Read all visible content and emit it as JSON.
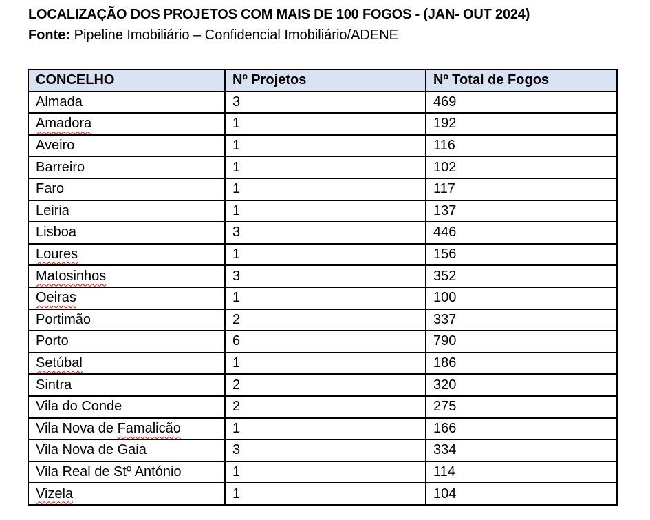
{
  "title": "LOCALIZAÇÃO DOS PROJETOS COM MAIS DE 100 FOGOS - (JAN- OUT 2024)",
  "source": {
    "label": "Fonte:",
    "text": " Pipeline Imobiliário – Confidencial Imobiliário/ADENE"
  },
  "colors": {
    "header_bg": "#d9e2f3",
    "border": "#000000",
    "spellcheck_underline": "#ff0000"
  },
  "table": {
    "headers": [
      "CONCELHO",
      "Nº Projetos",
      "Nº Total de Fogos"
    ],
    "rows": [
      {
        "name_plain": "Almada",
        "name_squiggle": "",
        "projetos": "3",
        "fogos": "469"
      },
      {
        "name_plain": "",
        "name_squiggle": "Amadora",
        "projetos": "1",
        "fogos": "192"
      },
      {
        "name_plain": "Aveiro",
        "name_squiggle": "",
        "projetos": "1",
        "fogos": "116"
      },
      {
        "name_plain": "Barreiro",
        "name_squiggle": "",
        "projetos": "1",
        "fogos": "102"
      },
      {
        "name_plain": "Faro",
        "name_squiggle": "",
        "projetos": "1",
        "fogos": "117"
      },
      {
        "name_plain": "Leiria",
        "name_squiggle": "",
        "projetos": "1",
        "fogos": "137"
      },
      {
        "name_plain": "Lisboa",
        "name_squiggle": "",
        "projetos": "3",
        "fogos": "446"
      },
      {
        "name_plain": "",
        "name_squiggle": "Loures",
        "projetos": "1",
        "fogos": "156"
      },
      {
        "name_plain": "",
        "name_squiggle": "Matosinhos",
        "projetos": "3",
        "fogos": "352"
      },
      {
        "name_plain": "",
        "name_squiggle": "Oeiras",
        "projetos": "1",
        "fogos": "100"
      },
      {
        "name_plain": "Portimão",
        "name_squiggle": "",
        "projetos": "2",
        "fogos": "337"
      },
      {
        "name_plain": "Porto",
        "name_squiggle": "",
        "projetos": "6",
        "fogos": "790"
      },
      {
        "name_plain": "",
        "name_squiggle": "Setúbal",
        "projetos": "1",
        "fogos": "186"
      },
      {
        "name_plain": "Sintra",
        "name_squiggle": "",
        "projetos": "2",
        "fogos": "320"
      },
      {
        "name_plain": "Vila do Conde",
        "name_squiggle": "",
        "projetos": "2",
        "fogos": "275"
      },
      {
        "name_plain": "Vila Nova de ",
        "name_squiggle": "Famalicão",
        "projetos": "1",
        "fogos": "166"
      },
      {
        "name_plain": "Vila Nova de Gaia",
        "name_squiggle": "",
        "projetos": "3",
        "fogos": "334"
      },
      {
        "name_plain": "Vila Real de Stº António",
        "name_squiggle": "",
        "projetos": "1",
        "fogos": "114"
      },
      {
        "name_plain": "",
        "name_squiggle": "Vizela",
        "projetos": "1",
        "fogos": "104"
      }
    ]
  }
}
